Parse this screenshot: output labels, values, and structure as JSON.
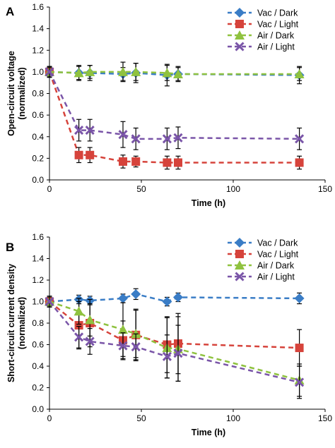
{
  "figure": {
    "panels": [
      "A",
      "B"
    ]
  },
  "chart_data": [
    {
      "type": "line",
      "panel_label": "A",
      "xlabel": "Time (h)",
      "ylabel": "Open-circuit voltage",
      "ylabel_sub": "(normalized)",
      "xlim": [
        0,
        150
      ],
      "ylim": [
        0,
        1.6
      ],
      "xticks": [
        "0",
        "50",
        "100",
        "150"
      ],
      "yticks": [
        "0.0",
        "0.2",
        "0.4",
        "0.6",
        "0.8",
        "1.0",
        "1.2",
        "1.4",
        "1.6"
      ],
      "legend_position": "top-right",
      "grid": false,
      "series": [
        {
          "name": "Vac / Dark",
          "color": "#3a7dc6",
          "marker": "diamond",
          "x": [
            0,
            16,
            22,
            40,
            47,
            64,
            70,
            136
          ],
          "y": [
            1.0,
            0.99,
            0.99,
            0.98,
            0.99,
            0.97,
            0.98,
            0.97
          ],
          "err": [
            0.05,
            0.07,
            0.07,
            0.06,
            0.09,
            0.1,
            0.07,
            0.08
          ]
        },
        {
          "name": "Vac / Light",
          "color": "#d6433b",
          "marker": "square",
          "x": [
            0,
            16,
            22,
            40,
            47,
            64,
            70,
            136
          ],
          "y": [
            1.0,
            0.23,
            0.23,
            0.17,
            0.17,
            0.16,
            0.16,
            0.16
          ],
          "err": [
            0.05,
            0.07,
            0.07,
            0.06,
            0.05,
            0.06,
            0.06,
            0.06
          ]
        },
        {
          "name": "Air / Dark",
          "color": "#8fc23f",
          "marker": "triangle",
          "x": [
            0,
            16,
            22,
            40,
            47,
            64,
            70,
            136
          ],
          "y": [
            1.0,
            0.99,
            1.0,
            1.0,
            1.0,
            0.99,
            0.98,
            0.98
          ],
          "err": [
            0.04,
            0.06,
            0.06,
            0.09,
            0.08,
            0.07,
            0.06,
            0.06
          ]
        },
        {
          "name": "Air / Light",
          "color": "#7a55a8",
          "marker": "x",
          "x": [
            0,
            16,
            22,
            40,
            47,
            64,
            70,
            136
          ],
          "y": [
            1.0,
            0.46,
            0.46,
            0.42,
            0.38,
            0.38,
            0.39,
            0.38
          ],
          "err": [
            0.05,
            0.1,
            0.1,
            0.12,
            0.1,
            0.1,
            0.1,
            0.1
          ]
        }
      ]
    },
    {
      "type": "line",
      "panel_label": "B",
      "xlabel": "Time (h)",
      "ylabel": "Short-circuit current density",
      "ylabel_sub": "(normalized)",
      "xlim": [
        0,
        150
      ],
      "ylim": [
        0,
        1.6
      ],
      "xticks": [
        "0",
        "50",
        "100",
        "150"
      ],
      "yticks": [
        "0.0",
        "0.2",
        "0.4",
        "0.6",
        "0.8",
        "1.0",
        "1.2",
        "1.4",
        "1.6"
      ],
      "legend_position": "top-right",
      "grid": false,
      "series": [
        {
          "name": "Vac / Dark",
          "color": "#3a7dc6",
          "marker": "diamond",
          "x": [
            0,
            16,
            22,
            40,
            47,
            64,
            70,
            136
          ],
          "y": [
            1.0,
            1.02,
            1.01,
            1.03,
            1.07,
            1.0,
            1.04,
            1.03
          ],
          "err": [
            0.04,
            0.04,
            0.04,
            0.04,
            0.05,
            0.04,
            0.04,
            0.05
          ]
        },
        {
          "name": "Vac / Light",
          "color": "#d6433b",
          "marker": "square",
          "x": [
            0,
            16,
            22,
            40,
            47,
            64,
            70,
            136
          ],
          "y": [
            1.0,
            0.78,
            0.8,
            0.64,
            0.69,
            0.6,
            0.61,
            0.57
          ],
          "err": [
            0.05,
            0.22,
            0.22,
            0.18,
            0.24,
            0.26,
            0.28,
            0.17
          ]
        },
        {
          "name": "Air / Dark",
          "color": "#8fc23f",
          "marker": "triangle",
          "x": [
            0,
            16,
            22,
            40,
            47,
            64,
            70,
            136
          ],
          "y": [
            1.0,
            0.91,
            0.83,
            0.74,
            0.7,
            0.57,
            0.56,
            0.27
          ],
          "err": [
            0.05,
            0.12,
            0.15,
            0.25,
            0.22,
            0.28,
            0.3,
            0.15
          ]
        },
        {
          "name": "Air / Light",
          "color": "#7a55a8",
          "marker": "x",
          "x": [
            0,
            16,
            22,
            40,
            47,
            64,
            70,
            136
          ],
          "y": [
            1.0,
            0.67,
            0.63,
            0.59,
            0.58,
            0.49,
            0.52,
            0.25
          ],
          "err": [
            0.05,
            0.1,
            0.12,
            0.12,
            0.12,
            0.2,
            0.26,
            0.15
          ]
        }
      ]
    }
  ]
}
